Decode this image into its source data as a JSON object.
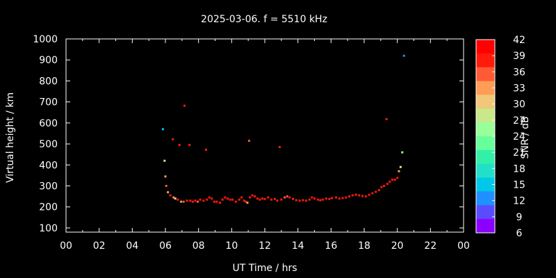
{
  "colors": {
    "background": "#000000",
    "axis": "#ffffff",
    "colorbar": [
      "#8b00ff",
      "#5b4bff",
      "#1e90ff",
      "#00c8e8",
      "#22e0c8",
      "#33f0a8",
      "#66ff99",
      "#99ff99",
      "#c8e88a",
      "#f0c878",
      "#ff9c55",
      "#ff5a35",
      "#ff1a0a",
      "#ff0000"
    ]
  },
  "chart_data": {
    "type": "scatter",
    "title": "2025-03-06. f = 5510 kHz",
    "xlabel": "UT Time / hrs",
    "ylabel": "Virtual height / km",
    "colorbar_label": "SNR / dB",
    "xlim": [
      0,
      24
    ],
    "ylim": [
      80,
      1000
    ],
    "xticks": [
      "00",
      "02",
      "04",
      "06",
      "08",
      "10",
      "12",
      "14",
      "16",
      "18",
      "20",
      "22",
      "00"
    ],
    "yticks": [
      "100",
      "200",
      "300",
      "400",
      "500",
      "600",
      "700",
      "800",
      "900",
      "1000"
    ],
    "colorbar_ticks": [
      "42",
      "39",
      "36",
      "33",
      "30",
      "27",
      "24",
      "21",
      "18",
      "15",
      "12",
      "9",
      "6"
    ],
    "snr_range": [
      6,
      42
    ],
    "points": [
      [
        5.85,
        570,
        13
      ],
      [
        5.95,
        420,
        28
      ],
      [
        6.0,
        345,
        34
      ],
      [
        6.05,
        300,
        37
      ],
      [
        6.15,
        270,
        33
      ],
      [
        6.3,
        255,
        38
      ],
      [
        6.45,
        522,
        40
      ],
      [
        6.5,
        245,
        35
      ],
      [
        6.6,
        240,
        30
      ],
      [
        6.75,
        235,
        38
      ],
      [
        6.85,
        495,
        40
      ],
      [
        6.95,
        225,
        33
      ],
      [
        7.1,
        225,
        37
      ],
      [
        7.15,
        682,
        40
      ],
      [
        7.3,
        230,
        40
      ],
      [
        7.45,
        495,
        40
      ],
      [
        7.5,
        230,
        38
      ],
      [
        7.65,
        225,
        39
      ],
      [
        7.8,
        230,
        40
      ],
      [
        7.95,
        225,
        36
      ],
      [
        8.1,
        235,
        40
      ],
      [
        8.3,
        230,
        38
      ],
      [
        8.45,
        472,
        40
      ],
      [
        8.5,
        235,
        40
      ],
      [
        8.65,
        245,
        40
      ],
      [
        8.8,
        240,
        40
      ],
      [
        8.95,
        225,
        40
      ],
      [
        9.1,
        225,
        40
      ],
      [
        9.3,
        220,
        40
      ],
      [
        9.45,
        235,
        40
      ],
      [
        9.6,
        245,
        40
      ],
      [
        9.75,
        240,
        38
      ],
      [
        9.9,
        235,
        40
      ],
      [
        10.05,
        235,
        40
      ],
      [
        10.25,
        225,
        40
      ],
      [
        10.45,
        235,
        40
      ],
      [
        10.6,
        245,
        40
      ],
      [
        10.75,
        230,
        40
      ],
      [
        10.85,
        225,
        38
      ],
      [
        10.95,
        220,
        34
      ],
      [
        11.05,
        515,
        36
      ],
      [
        11.1,
        245,
        40
      ],
      [
        11.25,
        255,
        40
      ],
      [
        11.4,
        250,
        40
      ],
      [
        11.55,
        240,
        40
      ],
      [
        11.7,
        235,
        40
      ],
      [
        11.85,
        240,
        40
      ],
      [
        12.0,
        238,
        40
      ],
      [
        12.2,
        245,
        40
      ],
      [
        12.4,
        235,
        40
      ],
      [
        12.6,
        238,
        40
      ],
      [
        12.75,
        230,
        40
      ],
      [
        12.9,
        485,
        40
      ],
      [
        13.0,
        235,
        38
      ],
      [
        13.2,
        245,
        36
      ],
      [
        13.35,
        250,
        36
      ],
      [
        13.5,
        245,
        40
      ],
      [
        13.7,
        238,
        40
      ],
      [
        13.9,
        232,
        40
      ],
      [
        14.1,
        230,
        40
      ],
      [
        14.3,
        232,
        40
      ],
      [
        14.5,
        230,
        40
      ],
      [
        14.7,
        235,
        40
      ],
      [
        14.85,
        245,
        40
      ],
      [
        15.0,
        240,
        40
      ],
      [
        15.2,
        235,
        40
      ],
      [
        15.35,
        232,
        40
      ],
      [
        15.5,
        235,
        40
      ],
      [
        15.7,
        240,
        40
      ],
      [
        15.9,
        238,
        40
      ],
      [
        16.05,
        242,
        40
      ],
      [
        16.3,
        245,
        40
      ],
      [
        16.5,
        240,
        40
      ],
      [
        16.7,
        242,
        40
      ],
      [
        16.9,
        245,
        40
      ],
      [
        17.1,
        250,
        40
      ],
      [
        17.3,
        255,
        40
      ],
      [
        17.5,
        258,
        40
      ],
      [
        17.7,
        255,
        40
      ],
      [
        17.9,
        252,
        40
      ],
      [
        18.1,
        250,
        40
      ],
      [
        18.3,
        258,
        40
      ],
      [
        18.5,
        265,
        40
      ],
      [
        18.7,
        272,
        40
      ],
      [
        18.9,
        280,
        40
      ],
      [
        19.05,
        295,
        40
      ],
      [
        19.2,
        300,
        40
      ],
      [
        19.35,
        618,
        40
      ],
      [
        19.4,
        310,
        40
      ],
      [
        19.55,
        320,
        40
      ],
      [
        19.7,
        330,
        39
      ],
      [
        19.85,
        330,
        40
      ],
      [
        20.0,
        338,
        38
      ],
      [
        20.1,
        370,
        33
      ],
      [
        20.2,
        390,
        28
      ],
      [
        20.3,
        460,
        24
      ],
      [
        20.4,
        920,
        12
      ]
    ]
  }
}
